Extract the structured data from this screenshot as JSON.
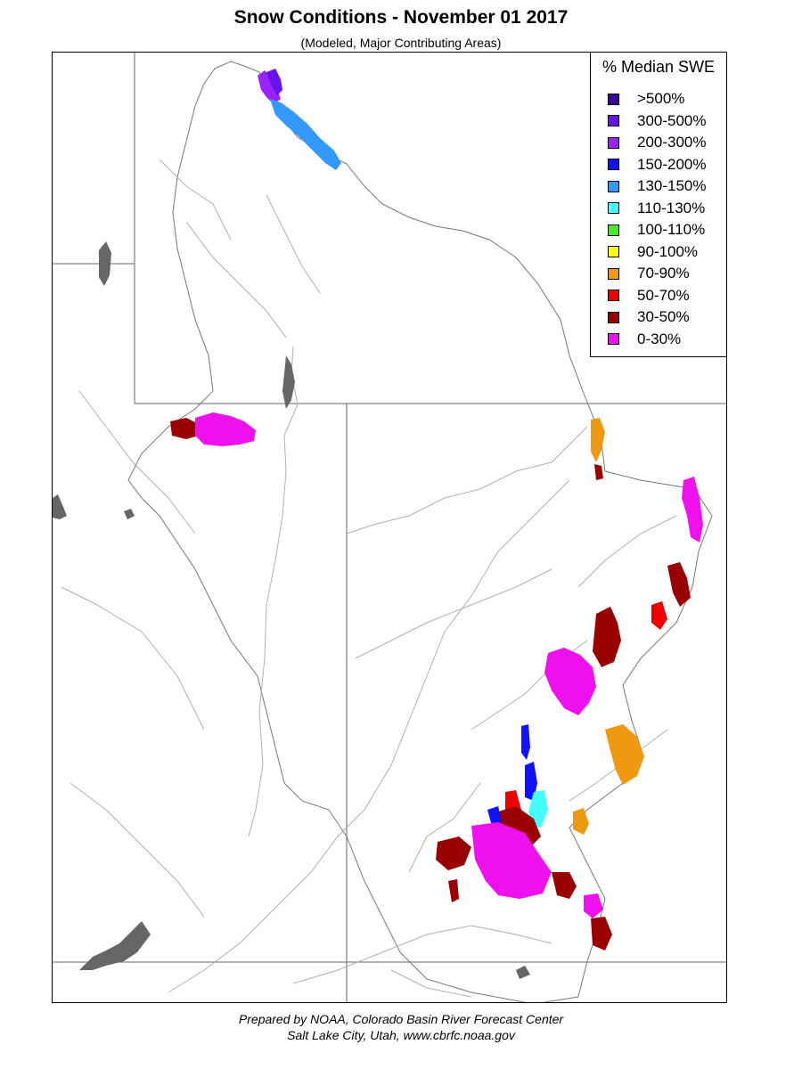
{
  "title": "Snow Conditions - November 01 2017",
  "subtitle": "(Modeled, Major Contributing Areas)",
  "legend": {
    "title": "% Median SWE",
    "items": [
      {
        "label": ">500%",
        "color": "#3d0099"
      },
      {
        "label": "300-500%",
        "color": "#6611ee"
      },
      {
        "label": "200-300%",
        "color": "#9922ff"
      },
      {
        "label": "150-200%",
        "color": "#1111ff"
      },
      {
        "label": "130-150%",
        "color": "#3399ff"
      },
      {
        "label": "110-130%",
        "color": "#44ffff"
      },
      {
        "label": "100-110%",
        "color": "#44ee22"
      },
      {
        "label": "90-100%",
        "color": "#ffff00"
      },
      {
        "label": "70-90%",
        "color": "#ee9911"
      },
      {
        "label": "50-70%",
        "color": "#ee0000"
      },
      {
        "label": "30-50%",
        "color": "#990000"
      },
      {
        "label": "0-30%",
        "color": "#ee11ee"
      }
    ]
  },
  "footer": {
    "line1": "Prepared by NOAA, Colorado Basin River Forecast Center",
    "line2": "Salt Lake City, Utah, www.cbrfc.noaa.gov"
  },
  "colors": {
    "state_border": "#666666",
    "river": "#b0b0b0",
    "lake": "#666666",
    "basin_outline": "#888888"
  }
}
